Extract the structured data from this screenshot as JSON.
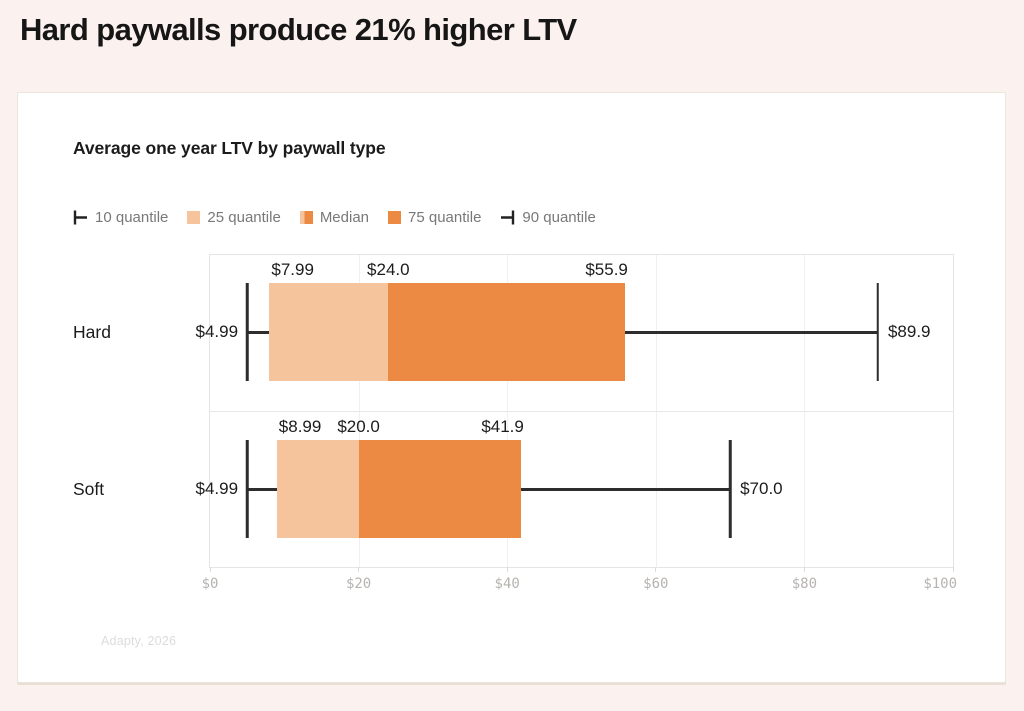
{
  "page": {
    "title": "Hard paywalls produce 21% higher LTV",
    "source": "Adapty, 2026"
  },
  "chart_data": {
    "type": "boxplot",
    "title": "Average one year LTV by paywall type",
    "orientation": "horizontal",
    "grid": true,
    "legend_position": "top",
    "legend": [
      {
        "label": "10 quantile",
        "marker": "whisker-left"
      },
      {
        "label": "25 quantile",
        "marker": "swatch",
        "color": "#F5C49D"
      },
      {
        "label": "Median",
        "marker": "swatch-split",
        "colors": [
          "#F5C49D",
          "#EC8A44"
        ]
      },
      {
        "label": "75 quantile",
        "marker": "swatch",
        "color": "#EC8A44"
      },
      {
        "label": "90 quantile",
        "marker": "whisker-right"
      }
    ],
    "categories": [
      "Hard",
      "Soft"
    ],
    "series": [
      {
        "name": "Hard",
        "q10": 4.99,
        "q25": 7.99,
        "median": 24.0,
        "q75": 55.9,
        "q90": 89.9,
        "labels": {
          "q10": "$4.99",
          "q25": "$7.99",
          "median": "$24.0",
          "q75": "$55.9",
          "q90": "$89.9"
        }
      },
      {
        "name": "Soft",
        "q10": 4.99,
        "q25": 8.99,
        "median": 20.0,
        "q75": 41.9,
        "q90": 70.0,
        "labels": {
          "q10": "$4.99",
          "q25": "$8.99",
          "median": "$20.0",
          "q75": "$41.9",
          "q90": "$70.0"
        }
      }
    ],
    "x_axis": {
      "min": 0,
      "max": 100,
      "tick_values": [
        0,
        20,
        40,
        60,
        80,
        100
      ],
      "ticks": [
        "$0",
        "$20",
        "$40",
        "$60",
        "$80",
        "$100"
      ]
    },
    "colors": {
      "box_low": "#F5C49D",
      "box_high": "#EC8A44",
      "whisker": "#2D2D2D",
      "grid": "#F1EFEF",
      "plot_border": "#E5E5E5"
    }
  }
}
